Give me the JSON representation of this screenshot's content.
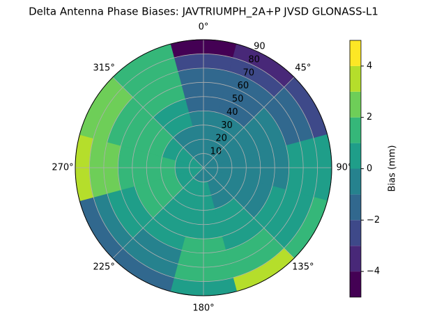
{
  "chart_data": {
    "type": "polar_contour",
    "title": "Delta Antenna Phase Biases: JAVTRIUMPH_2A+P JVSD GLONASS-L1",
    "theta": [
      0,
      30,
      60,
      90,
      120,
      150,
      180,
      210,
      240,
      270,
      300,
      330
    ],
    "r": [
      5,
      15,
      25,
      35,
      45,
      55,
      65,
      75,
      85
    ],
    "z": [
      [
        -0.5,
        -0.5,
        -0.6,
        -0.6,
        -0.5,
        -0.4,
        -0.3,
        -0.2,
        0.2,
        0.3,
        0.2,
        -0.3
      ],
      [
        -0.6,
        -0.7,
        -0.7,
        -0.6,
        -0.5,
        -0.3,
        0,
        0.2,
        0.5,
        0.6,
        0.4,
        -0.3
      ],
      [
        -0.8,
        -0.8,
        -0.8,
        -0.6,
        -0.5,
        -0.2,
        0.3,
        0.6,
        1.1,
        1.2,
        0.8,
        -0.2
      ],
      [
        -0.9,
        -1,
        -0.9,
        -0.6,
        -0.4,
        0,
        0.5,
        0.8,
        1.3,
        1.5,
        1.1,
        0
      ],
      [
        -1.3,
        -1.2,
        -0.8,
        -0.4,
        -0.1,
        0.3,
        0.8,
        0.6,
        1.2,
        1.6,
        1.3,
        0.5
      ],
      [
        -1.6,
        -1.5,
        -0.8,
        -0.2,
        0.2,
        0.6,
        1.0,
        0.3,
        0.8,
        1.7,
        1.5,
        1.2
      ],
      [
        -1.8,
        -1.8,
        -1.2,
        0.2,
        0.5,
        1.2,
        1.2,
        -0.2,
        0.3,
        2.2,
        1.8,
        1.3
      ],
      [
        -2.5,
        -2.6,
        -1.5,
        0.5,
        0.8,
        1.8,
        1.0,
        -0.8,
        -0.3,
        2.5,
        2.2,
        1.2
      ],
      [
        -4.2,
        -3.5,
        -2.2,
        0.3,
        1.5,
        3.2,
        0.5,
        -1.8,
        -1.2,
        3.2,
        2.6,
        1.0
      ]
    ],
    "levels": [
      -5,
      -4,
      -3,
      -2,
      -1,
      0,
      1,
      2,
      3,
      4,
      5
    ],
    "colors": [
      "#440154",
      "#482878",
      "#3e4989",
      "#31688e",
      "#26828e",
      "#1f9e89",
      "#35b779",
      "#6ece58",
      "#b5de2b",
      "#fde725"
    ],
    "rlim": [
      0,
      90
    ],
    "rticks": [
      10,
      20,
      30,
      40,
      50,
      60,
      70,
      80,
      90
    ],
    "thetaticks": [
      {
        "value": 0,
        "label": "0°"
      },
      {
        "value": 45,
        "label": "45°"
      },
      {
        "value": 90,
        "label": "90°"
      },
      {
        "value": 135,
        "label": "135°"
      },
      {
        "value": 180,
        "label": "180°"
      },
      {
        "value": 225,
        "label": "225°"
      },
      {
        "value": 270,
        "label": "270°"
      },
      {
        "value": 315,
        "label": "315°"
      }
    ],
    "grid": true,
    "colorbar_label": "Bias (mm)",
    "clim": [
      -5,
      5
    ],
    "cticks": [
      {
        "value": -4,
        "label": "−4"
      },
      {
        "value": -2,
        "label": "−2"
      },
      {
        "value": 0,
        "label": "0"
      },
      {
        "value": 2,
        "label": "2"
      },
      {
        "value": 4,
        "label": "4"
      }
    ]
  }
}
